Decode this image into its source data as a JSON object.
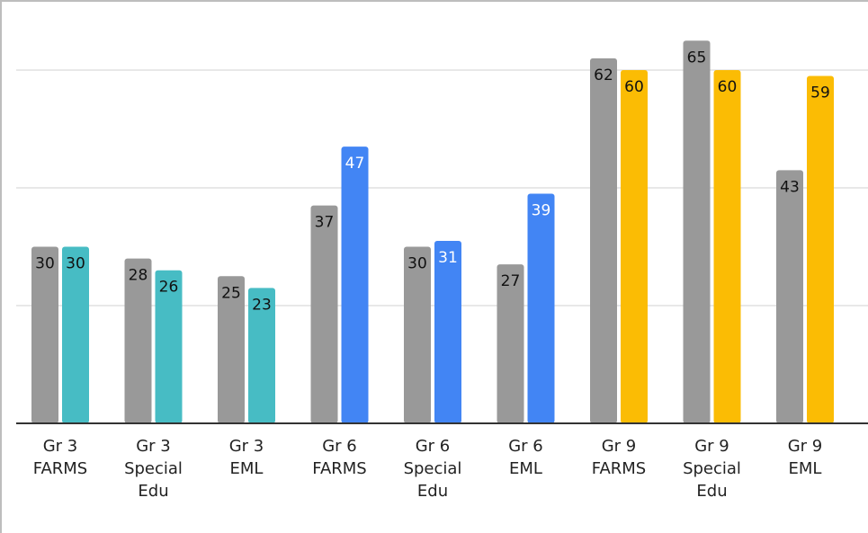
{
  "chart_data": {
    "type": "bar",
    "title": "",
    "xlabel": "",
    "ylabel": "",
    "ylim": [
      0,
      70
    ],
    "grid": true,
    "legend": "none",
    "categories": [
      [
        "Gr 3",
        "FARMS"
      ],
      [
        "Gr 3",
        "Special",
        "Edu"
      ],
      [
        "Gr 3",
        "EML"
      ],
      [
        "Gr 6",
        "FARMS"
      ],
      [
        "Gr 6",
        "Special",
        "Edu"
      ],
      [
        "Gr 6",
        "EML"
      ],
      [
        "Gr 9",
        "FARMS"
      ],
      [
        "Gr 9",
        "Special",
        "Edu"
      ],
      [
        "Gr 9",
        "EML"
      ]
    ],
    "series": [
      {
        "values": [
          30,
          28,
          25,
          37,
          30,
          27,
          62,
          65,
          43
        ],
        "colors": [
          "#999999"
        ]
      },
      {
        "values": [
          30,
          26,
          23,
          47,
          31,
          39,
          60,
          60,
          59
        ],
        "colors": [
          "#47BCC4",
          "#47BCC4",
          "#47BCC4",
          "#4285F4",
          "#4285F4",
          "#4285F4",
          "#FBBC04",
          "#FBBC04",
          "#FBBC04"
        ]
      }
    ],
    "label_colors": {
      "#999999": "#111111",
      "#47BCC4": "#111111",
      "#4285F4": "#ffffff",
      "#FBBC04": "#111111"
    }
  }
}
